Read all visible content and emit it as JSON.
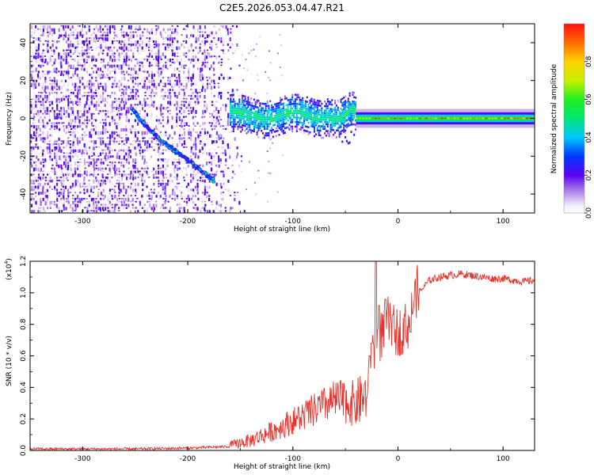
{
  "chart_data": [
    {
      "type": "heatmap",
      "title": "C2E5.2026.053.04.47.R21",
      "xlabel": "Height of straight line (km)",
      "ylabel": "Frequency (Hz)",
      "xlim": [
        -350,
        130
      ],
      "ylim": [
        -50,
        50
      ],
      "x_ticks": [
        -300,
        -200,
        -100,
        0,
        100
      ],
      "y_ticks": [
        -40,
        -20,
        0,
        20,
        40
      ],
      "colorbar": {
        "label": "Normalized spectral amplitude",
        "range": [
          0,
          1
        ],
        "ticks": [
          0.0,
          0.2,
          0.4,
          0.6,
          0.8
        ]
      },
      "features": [
        {
          "name": "noise",
          "x_range": [
            -350,
            -150
          ],
          "freq_range": [
            -50,
            50
          ],
          "amplitude": 0.15
        },
        {
          "name": "descending-trace",
          "x": [
            -252,
            -240,
            -225,
            -210,
            -195,
            -182,
            -175
          ],
          "freq": [
            4,
            -4,
            -12,
            -18,
            -24,
            -30,
            -33
          ],
          "amplitude": 0.35
        },
        {
          "name": "broad-band",
          "x_range": [
            -160,
            -40
          ],
          "center_freq": 2,
          "halfwidth_hz": 6,
          "amplitude": 0.4
        },
        {
          "name": "carrier-line",
          "x_range": [
            -40,
            130
          ],
          "center_freq": 0,
          "halfwidth_hz": 2,
          "amplitude": 0.85
        }
      ]
    },
    {
      "type": "line",
      "title": "",
      "xlabel": "Height of straight line (km)",
      "ylabel": "SNR (10 * v/v)",
      "y_multiplier": "(x10^4)",
      "y_multiplier_base": "(x10",
      "y_multiplier_exp": "4",
      "xlim": [
        -350,
        130
      ],
      "ylim": [
        0,
        1.2
      ],
      "x_ticks": [
        -300,
        -200,
        -100,
        0,
        100
      ],
      "y_ticks": [
        0.0,
        0.2,
        0.4,
        0.6,
        0.8,
        1.0,
        1.2
      ],
      "color": "#e8312a",
      "series": [
        {
          "name": "SNR",
          "x": [
            -350,
            -300,
            -250,
            -200,
            -160,
            -140,
            -120,
            -100,
            -80,
            -60,
            -40,
            -30,
            -25,
            -20,
            -15,
            -10,
            -5,
            0,
            10,
            15,
            20,
            30,
            40,
            50,
            60,
            70,
            80,
            90,
            100,
            110,
            120,
            130
          ],
          "values": [
            0.01,
            0.01,
            0.01,
            0.015,
            0.025,
            0.05,
            0.1,
            0.16,
            0.22,
            0.28,
            0.25,
            0.3,
            0.55,
            0.62,
            0.7,
            0.78,
            0.72,
            0.7,
            0.75,
            0.9,
            1.0,
            1.08,
            1.1,
            1.11,
            1.12,
            1.11,
            1.1,
            1.09,
            1.09,
            1.08,
            1.07,
            1.08
          ],
          "spikes": [
            [
              -27,
              0.6
            ],
            [
              -25,
              0.68
            ],
            [
              -21,
              1.2
            ],
            [
              -18,
              0.92
            ],
            [
              -12,
              0.96
            ],
            [
              -5,
              0.86
            ],
            [
              12,
              0.75
            ]
          ]
        }
      ]
    }
  ]
}
